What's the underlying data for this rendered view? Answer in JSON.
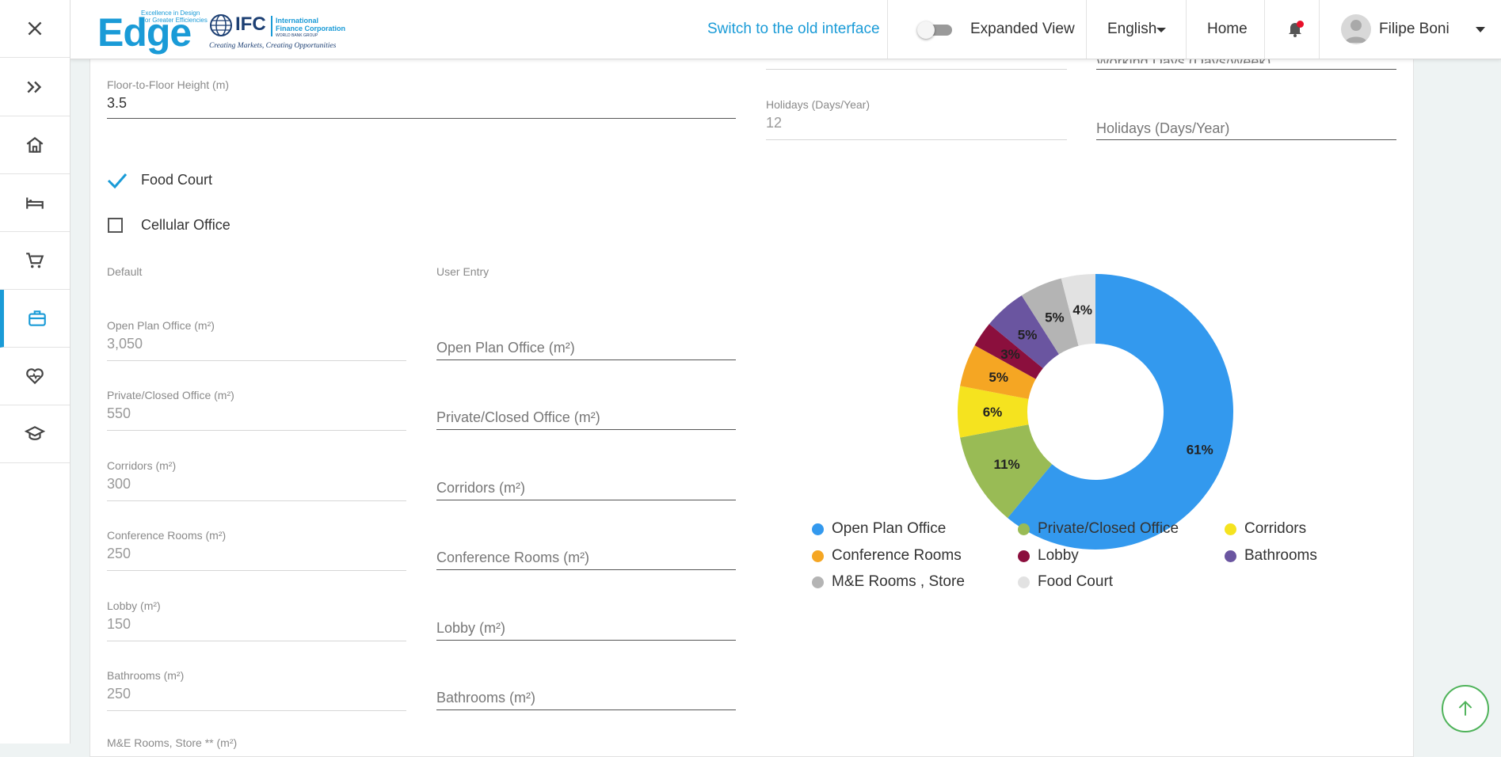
{
  "header": {
    "logo_edge": "Edge",
    "logo_edge_tagline_1": "Excellence in Design",
    "logo_edge_tagline_2": "For Greater Efficiencies",
    "logo_ifc_short": "IFC",
    "logo_ifc_line1": "International",
    "logo_ifc_line2": "Finance Corporation",
    "logo_ifc_line3": "WORLD BANK GROUP",
    "logo_ifc_motto": "Creating Markets, Creating Opportunities",
    "switch_link": "Switch to the old interface",
    "expanded_view_label": "Expanded View",
    "expanded_view_on": false,
    "language": "English",
    "home": "Home",
    "user_name": "Filipe Boni"
  },
  "rail": {
    "items": [
      "close-icon",
      "expand-icon",
      "home-icon",
      "hotel-icon",
      "retail-cart-icon",
      "office-briefcase-icon",
      "health-heart-icon",
      "education-cap-icon"
    ]
  },
  "form": {
    "floor_height_label": "Floor-to-Floor Height (m)",
    "floor_height_value": "3.5",
    "working_days_label": "Working Days (Days/Week)",
    "holidays_label": "Holidays (Days/Year)",
    "holidays_default": "12",
    "holidays_user_placeholder": "Holidays (Days/Year)",
    "food_court_label": "Food Court",
    "food_court_checked": true,
    "cellular_office_label": "Cellular Office",
    "cellular_office_checked": false,
    "col_default": "Default",
    "col_user": "User Entry",
    "areas": [
      {
        "label": "Open Plan Office (m²)",
        "default": "3,050",
        "placeholder": "Open Plan Office (m²)"
      },
      {
        "label": "Private/Closed Office (m²)",
        "default": "550",
        "placeholder": "Private/Closed Office (m²)"
      },
      {
        "label": "Corridors (m²)",
        "default": "300",
        "placeholder": "Corridors (m²)"
      },
      {
        "label": "Conference Rooms (m²)",
        "default": "250",
        "placeholder": "Conference Rooms (m²)"
      },
      {
        "label": "Lobby (m²)",
        "default": "150",
        "placeholder": "Lobby (m²)"
      },
      {
        "label": "Bathrooms (m²)",
        "default": "250",
        "placeholder": "Bathrooms (m²)"
      }
    ],
    "next_label_partial": "M&E Rooms, Store ** (m²)"
  },
  "chart_data": {
    "type": "pie",
    "donut": true,
    "title": "",
    "categories": [
      "Open Plan Office",
      "Private/Closed Office",
      "Corridors",
      "Conference Rooms",
      "Lobby",
      "Bathrooms",
      "M&E Rooms , Store",
      "Food Court"
    ],
    "values": [
      61,
      11,
      6,
      5,
      3,
      5,
      5,
      4
    ],
    "labels": [
      "61%",
      "11%",
      "6%",
      "5%",
      "3%",
      "5%",
      "5%",
      "4%"
    ],
    "colors": [
      "#3399ee",
      "#99bb55",
      "#f5e31f",
      "#f5a623",
      "#8b0f3d",
      "#6a55a0",
      "#b4b4b4",
      "#e2e2e2"
    ],
    "legend_position": "bottom"
  }
}
